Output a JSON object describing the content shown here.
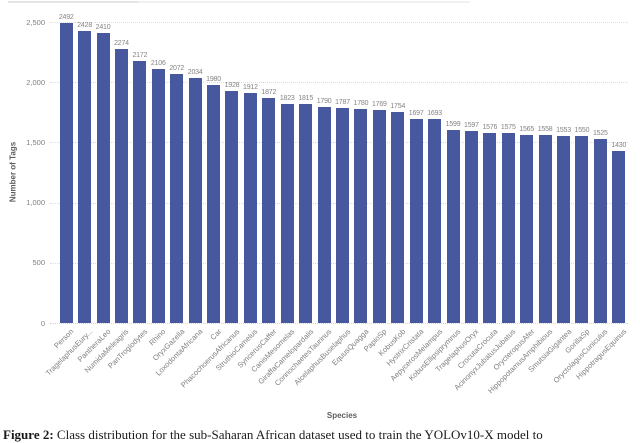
{
  "figure": {
    "caption_label": "Figure 2:",
    "caption_text": " Class distribution for the sub-Saharan African dataset used to train the YOLOv10-X model to"
  },
  "chart_data": {
    "type": "bar",
    "title": "",
    "xlabel": "Species",
    "ylabel": "Number of Tags",
    "ylim": [
      0,
      2500
    ],
    "grid": "horizontal-dotted",
    "legend": "none",
    "bar_color": "#48589e",
    "text_color": "#808080",
    "yticks": [
      {
        "value": 0,
        "label": "0"
      },
      {
        "value": 500,
        "label": "500"
      },
      {
        "value": 1000,
        "label": "1,000"
      },
      {
        "value": 1500,
        "label": "1,500"
      },
      {
        "value": 2000,
        "label": "2,000"
      },
      {
        "value": 2500,
        "label": "2,500"
      }
    ],
    "categories": [
      "Person",
      "TragelaphusEury...",
      "PantheraLeo",
      "NumidaMeleagris",
      "PanTroglodytes",
      "Rhino",
      "OryxGazella",
      "LoxodontaAfricana",
      "Car",
      "PhacochoerusAfricanus",
      "StruthioCamelus",
      "SyncerusCaffer",
      "CanisMesomelas",
      "GiraffaCamelopardalis",
      "ConnochaetesTaurinus",
      "AlcelaphusBuselaphus",
      "EquusQuagga",
      "PapioSp",
      "KobusKob",
      "HystrixCristata",
      "AepycerosMelampus",
      "KobusEllipsiprymnus",
      "TragelaphusOryx",
      "CrocutaCrocuta",
      "AcinonyxJubatusJubatus",
      "OrycteropusAfer",
      "HippopotamusAmphibious",
      "SmutsiaGigantea",
      "GorillaSp",
      "OryctolagusCuniculus",
      "HippotragusEquinus"
    ],
    "values": [
      2492,
      2428,
      2410,
      2274,
      2172,
      2106,
      2072,
      2034,
      1980,
      1928,
      1912,
      1872,
      1823,
      1815,
      1790,
      1787,
      1780,
      1769,
      1754,
      1697,
      1693,
      1599,
      1597,
      1576,
      1575,
      1565,
      1558,
      1553,
      1550,
      1525,
      1430
    ]
  }
}
